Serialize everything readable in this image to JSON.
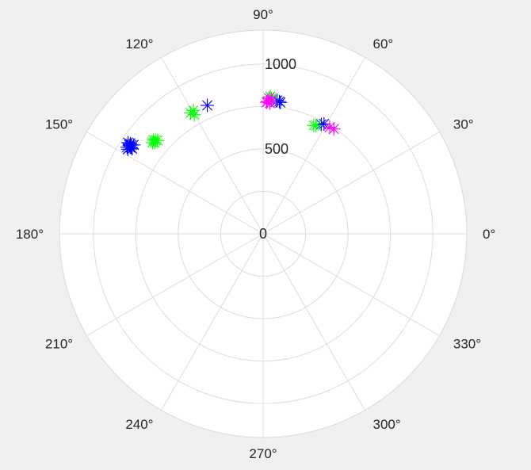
{
  "chart_data": {
    "type": "scatter",
    "coordinate_system": "polar",
    "marker": "asterisk",
    "theta_unit": "degrees",
    "theta_ticks": [
      0,
      30,
      60,
      90,
      120,
      150,
      180,
      210,
      240,
      270,
      300,
      330
    ],
    "theta_tick_labels": [
      "0°",
      "30°",
      "60°",
      "90°",
      "120°",
      "150°",
      "180°",
      "210°",
      "240°",
      "270°",
      "300°",
      "330°"
    ],
    "r_lim": [
      0,
      1200
    ],
    "r_ticks": [
      0,
      500,
      1000
    ],
    "r_tick_labels": [
      "0",
      "500",
      "1000"
    ],
    "r_label_angle_deg": 90,
    "grid": true,
    "colors": {
      "background": "#f0f0f0",
      "axes_face": "#ffffff",
      "grid": "#dcdcdc",
      "text": "#262626"
    },
    "series": [
      {
        "color": "#0000ff",
        "points": [
          {
            "theta": 146,
            "r": 935
          },
          {
            "theta": 147,
            "r": 935
          },
          {
            "theta": 146.5,
            "r": 945
          },
          {
            "theta": 147.5,
            "r": 950
          },
          {
            "theta": 145.5,
            "r": 925
          },
          {
            "theta": 146,
            "r": 960
          },
          {
            "theta": 147,
            "r": 920
          },
          {
            "theta": 148,
            "r": 940
          },
          {
            "theta": 146.8,
            "r": 930
          },
          {
            "theta": 145.8,
            "r": 945
          },
          {
            "theta": 113.5,
            "r": 825
          },
          {
            "theta": 83,
            "r": 785
          },
          {
            "theta": 84,
            "r": 790
          },
          {
            "theta": 82.5,
            "r": 780
          },
          {
            "theta": 62,
            "r": 730
          },
          {
            "theta": 61,
            "r": 740
          }
        ]
      },
      {
        "color": "#00ff00",
        "points": [
          {
            "theta": 139,
            "r": 840
          },
          {
            "theta": 140,
            "r": 835
          },
          {
            "theta": 139.5,
            "r": 850
          },
          {
            "theta": 140.5,
            "r": 845
          },
          {
            "theta": 138.5,
            "r": 830
          },
          {
            "theta": 119.5,
            "r": 835
          },
          {
            "theta": 120,
            "r": 810
          },
          {
            "theta": 121,
            "r": 830
          },
          {
            "theta": 87,
            "r": 810
          },
          {
            "theta": 86.5,
            "r": 800
          },
          {
            "theta": 65,
            "r": 705
          },
          {
            "theta": 64,
            "r": 710
          }
        ]
      },
      {
        "color": "#ff00ff",
        "points": [
          {
            "theta": 88,
            "r": 780
          },
          {
            "theta": 87.5,
            "r": 800
          },
          {
            "theta": 88.5,
            "r": 775
          },
          {
            "theta": 86.5,
            "r": 790
          },
          {
            "theta": 87,
            "r": 770
          },
          {
            "theta": 58,
            "r": 740
          },
          {
            "theta": 56,
            "r": 745
          }
        ]
      }
    ]
  }
}
